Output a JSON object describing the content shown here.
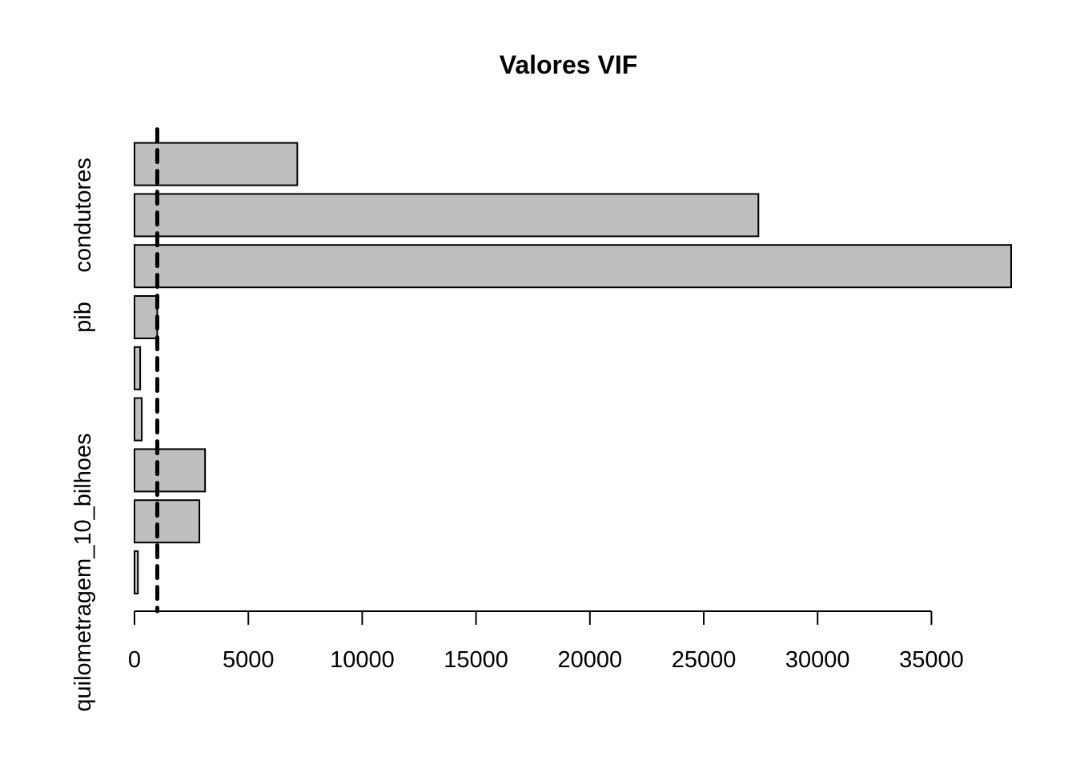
{
  "chart_data": {
    "type": "bar",
    "orientation": "horizontal",
    "title": "Valores VIF",
    "xlabel": "",
    "ylabel": "",
    "categories": [
      "quilometragem_10_bilhoes",
      "",
      "",
      "",
      "",
      "pib",
      "",
      "condutores",
      ""
    ],
    "values": [
      150,
      2850,
      3100,
      320,
      250,
      1000,
      38500,
      27400,
      7150
    ],
    "xlim": [
      0,
      38500
    ],
    "xticks": [
      0,
      5000,
      10000,
      15000,
      20000,
      25000,
      30000,
      35000
    ],
    "reference_line": {
      "value": 1000,
      "style": "dashed"
    },
    "grid": false,
    "legend": "none",
    "colors": {
      "bar_fill": "#bebebe",
      "bar_stroke": "#000000",
      "reference_line": "#000000"
    }
  }
}
